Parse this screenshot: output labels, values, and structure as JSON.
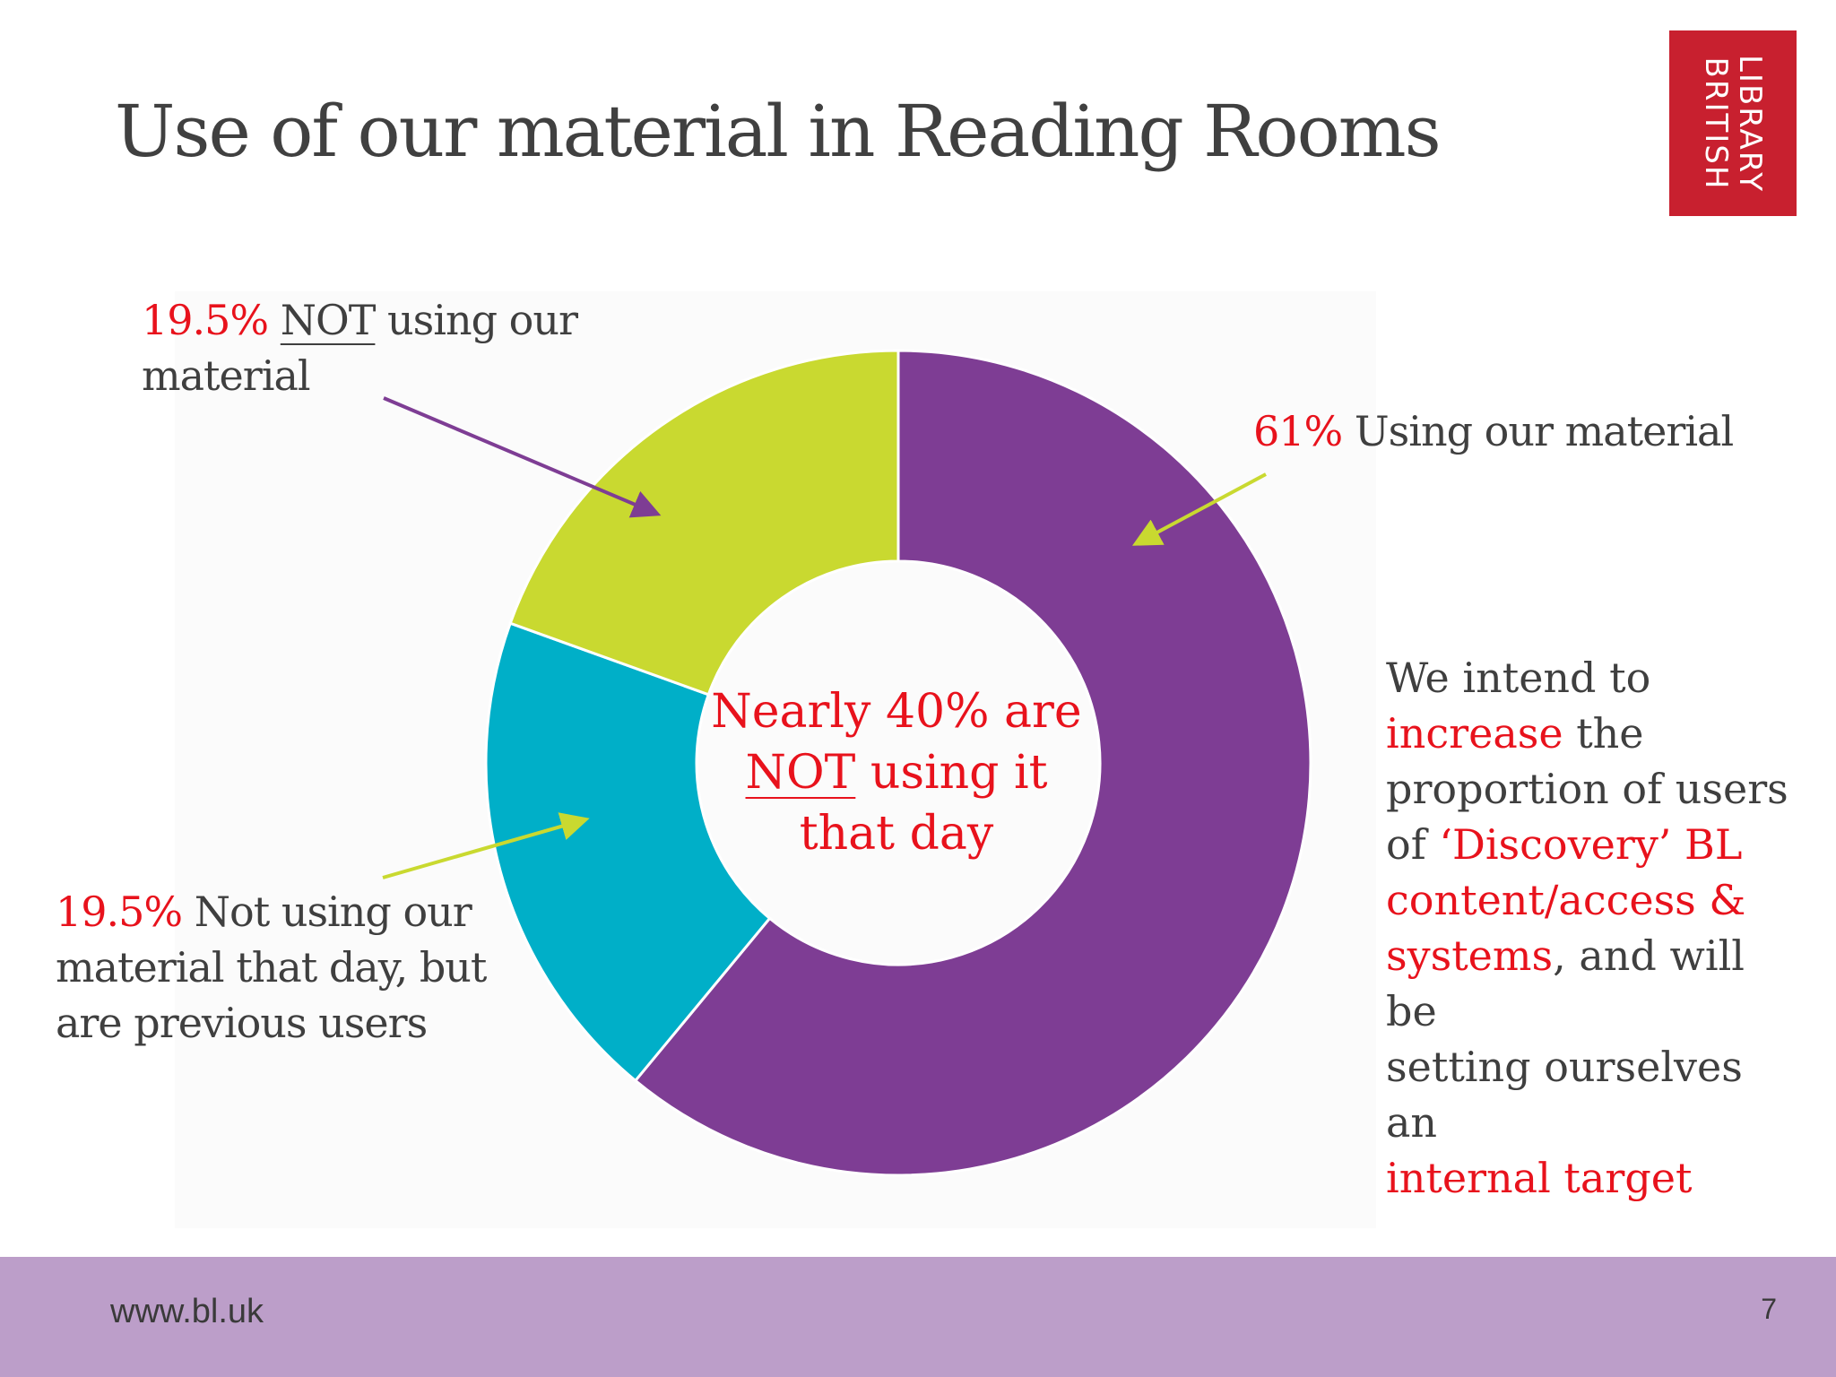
{
  "slide": {
    "title": "Use of our material in Reading Rooms",
    "logo": {
      "line1": "LIBRARY",
      "line2": "BRITISH"
    },
    "center_text": {
      "line1": "Nearly 40% are",
      "line2_underlined": "NOT",
      "line2_rest": " using it",
      "line3": "that day"
    },
    "labels": {
      "not_using": {
        "pct": "19.5%",
        "underlined": "NOT",
        "rest": " using our",
        "line2": "material"
      },
      "using": {
        "pct": "61%",
        "rest": " Using our material"
      },
      "previous": {
        "pct": "19.5%",
        "rest": " Not using our",
        "line2": "material that day, but",
        "line3": "are previous users"
      }
    },
    "note": {
      "p1": "We intend to",
      "p2_red": "increase",
      "p2_rest": " the",
      "p3": "proportion of users",
      "p4_black": "of ",
      "p4_red": "‘Discovery’ BL",
      "p5_red": "content/access &",
      "p6_red": "systems",
      "p6_rest": ", and will be",
      "p7": "setting ourselves an",
      "p8_red": "internal target"
    },
    "footer": {
      "url": "www.bl.uk",
      "page": "7"
    }
  },
  "colors": {
    "using": "#7e3d94",
    "previous": "#00afc8",
    "not_using": "#c9d930",
    "accent_red": "#e8121c",
    "footer": "#bc9ec9",
    "logo": "#c8202f"
  },
  "chart_data": {
    "type": "pie",
    "style": "donut",
    "categories": [
      "Using our material",
      "Not using our material that day, but are previous users",
      "NOT using our material"
    ],
    "values": [
      61,
      19.5,
      19.5
    ],
    "colors": [
      "#7e3d94",
      "#00afc8",
      "#c9d930"
    ],
    "start_angle_deg": 0,
    "direction": "clockwise"
  }
}
